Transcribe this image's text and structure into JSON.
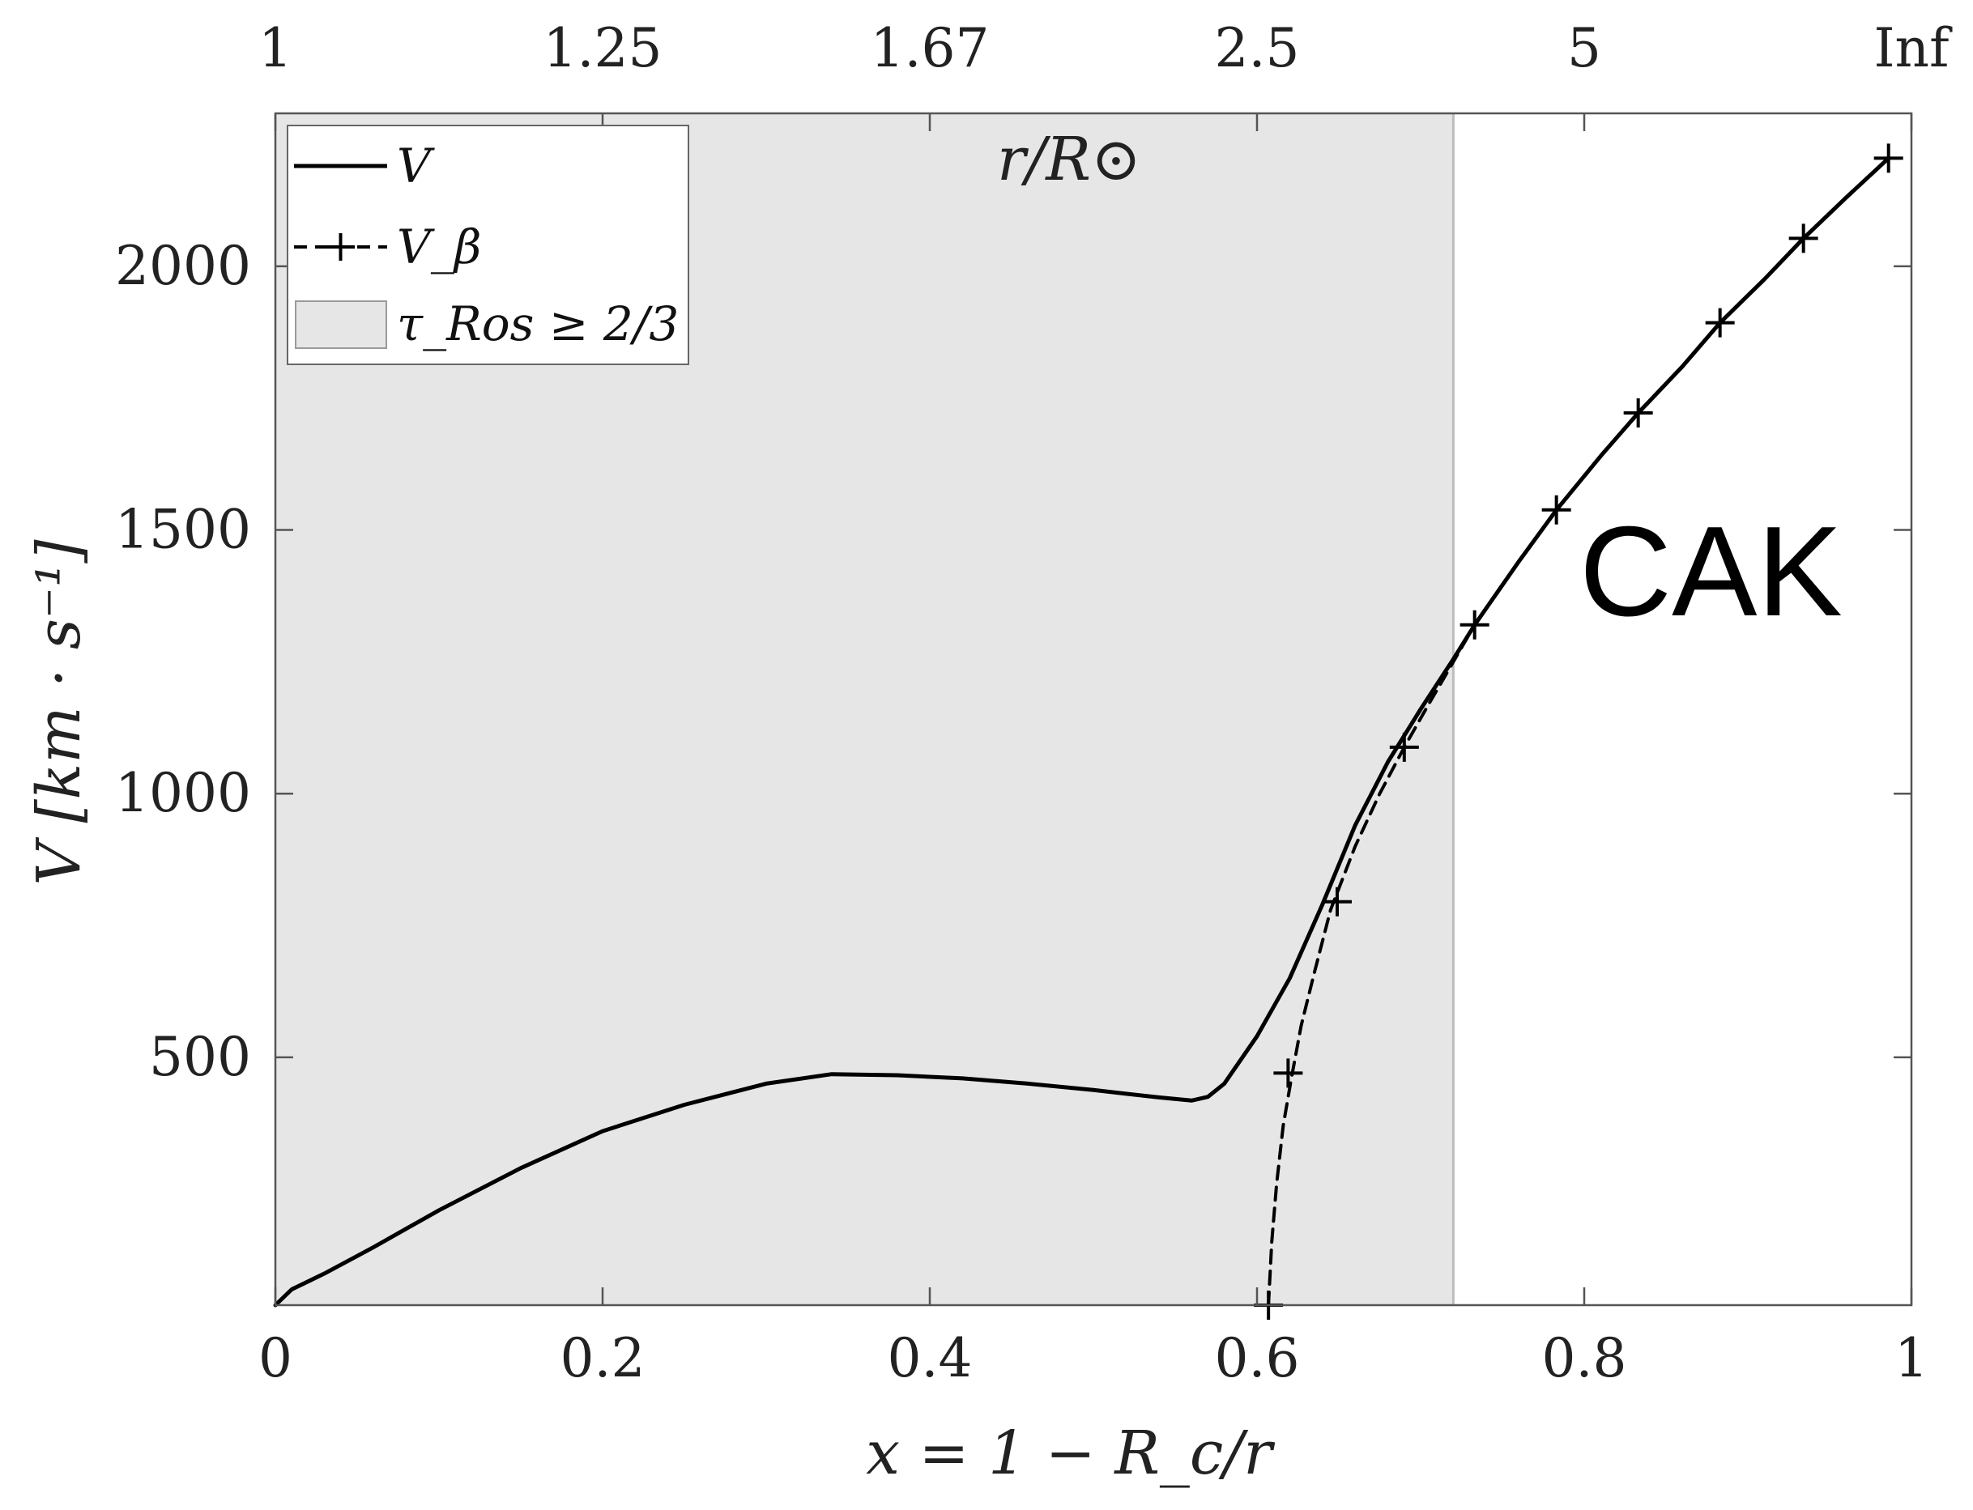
{
  "chart_data": {
    "type": "line",
    "xlabel": "x = 1 − R_c/r",
    "ylabel": "V [km · s⁻¹]",
    "top_axis_label": "r/R⊙",
    "xlim": [
      0,
      1
    ],
    "ylim": [
      30,
      2290
    ],
    "x_ticks": [
      0,
      0.2,
      0.4,
      0.6,
      0.8,
      1
    ],
    "x_tick_labels": [
      "0",
      "0.2",
      "0.4",
      "0.6",
      "0.8",
      "1"
    ],
    "y_ticks": [
      500,
      1000,
      1500,
      2000
    ],
    "y_tick_labels": [
      "500",
      "1000",
      "1500",
      "2000"
    ],
    "top_ticks": [
      0,
      0.2,
      0.4,
      0.6,
      0.8,
      1
    ],
    "top_tick_labels": [
      "1",
      "1.25",
      "1.67",
      "2.5",
      "5",
      "Inf"
    ],
    "grid": false,
    "legend_position": "top-left",
    "legend": [
      {
        "label": "V",
        "style": "solid"
      },
      {
        "label": "V_β",
        "style": "dashed-plus"
      },
      {
        "label": "τ_Ros ≥ 2/3",
        "style": "shaded"
      }
    ],
    "shaded_region": {
      "x": [
        0,
        0.72
      ],
      "color": "#e6e6e6"
    },
    "annotation": "CAK",
    "series": [
      {
        "name": "V",
        "style": "solid",
        "x": [
          0,
          0.01,
          0.03,
          0.06,
          0.1,
          0.15,
          0.2,
          0.25,
          0.3,
          0.34,
          0.38,
          0.42,
          0.46,
          0.5,
          0.54,
          0.56,
          0.57,
          0.58,
          0.6,
          0.62,
          0.64,
          0.66,
          0.68,
          0.7,
          0.72,
          0.733,
          0.76,
          0.783,
          0.81,
          0.833,
          0.86,
          0.883,
          0.91,
          0.934,
          0.96,
          0.986
        ],
        "y": [
          30,
          60,
          90,
          140,
          210,
          290,
          360,
          410,
          450,
          468,
          466,
          460,
          450,
          438,
          424,
          418,
          425,
          450,
          540,
          650,
          790,
          940,
          1060,
          1160,
          1255,
          1320,
          1440,
          1538,
          1640,
          1722,
          1810,
          1893,
          1975,
          2053,
          2130,
          2205
        ]
      },
      {
        "name": "V_β",
        "style": "dashed",
        "x": [
          0.607,
          0.609,
          0.612,
          0.616,
          0.621,
          0.627,
          0.635,
          0.645,
          0.66,
          0.675,
          0.69,
          0.705,
          0.72,
          0.733,
          0.76,
          0.783,
          0.81,
          0.833,
          0.86,
          0.883,
          0.91,
          0.934,
          0.96,
          0.986
        ],
        "y": [
          30,
          150,
          260,
          370,
          460,
          560,
          660,
          780,
          900,
          1000,
          1088,
          1170,
          1250,
          1320,
          1440,
          1538,
          1640,
          1722,
          1810,
          1893,
          1975,
          2053,
          2130,
          2205
        ],
        "markers_x": [
          0.607,
          0.619,
          0.649,
          0.69,
          0.733,
          0.783,
          0.833,
          0.883,
          0.934,
          0.986
        ],
        "markers_y": [
          30,
          470,
          795,
          1088,
          1320,
          1538,
          1722,
          1893,
          2053,
          2205
        ]
      }
    ]
  }
}
